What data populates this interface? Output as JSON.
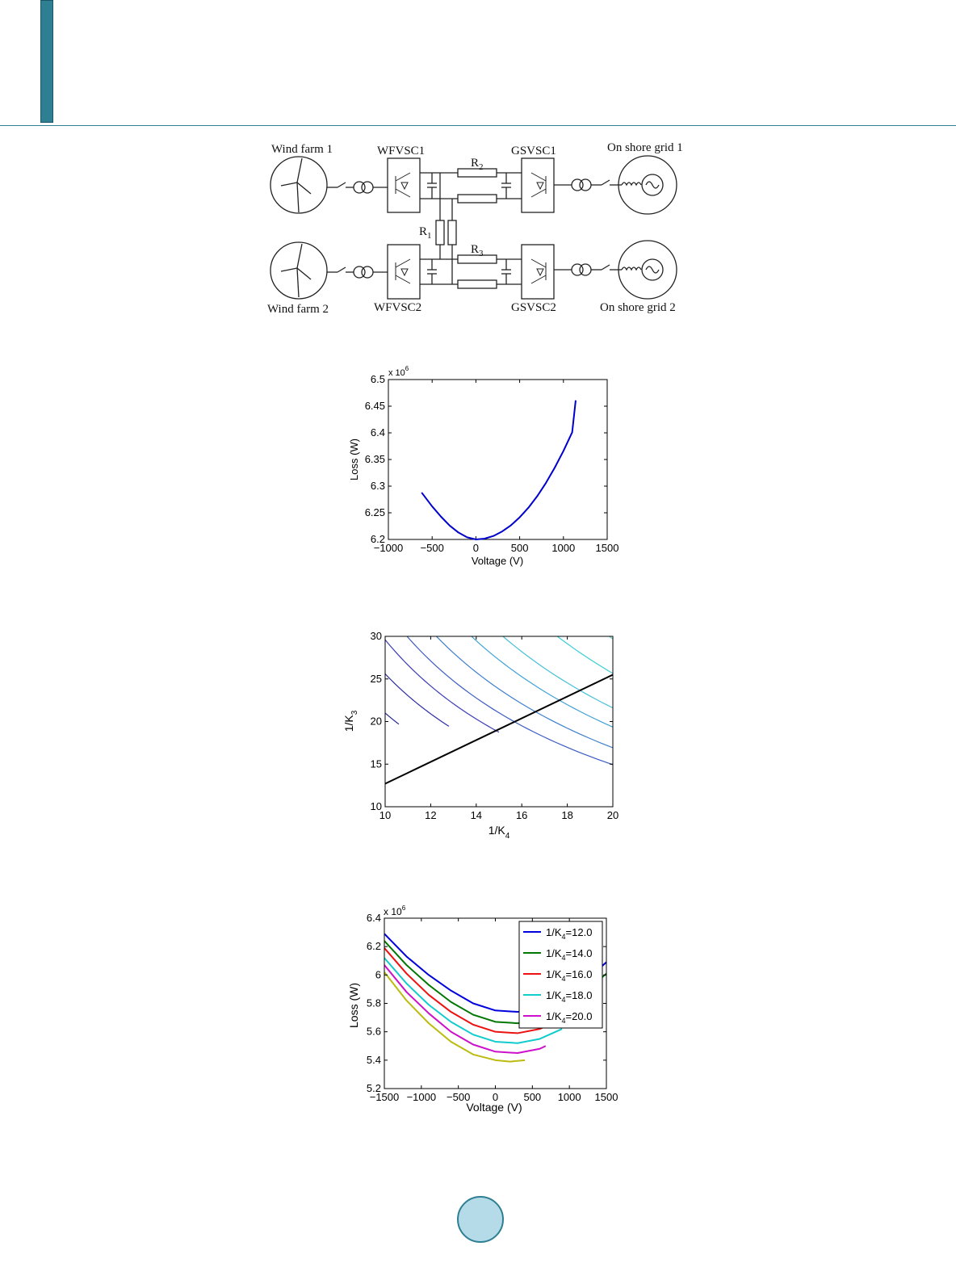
{
  "diagram": {
    "wind_farm_1": "Wind farm 1",
    "wind_farm_2": "Wind farm 2",
    "wfvsc1": "WFVSC1",
    "wfvsc2": "WFVSC2",
    "gsvsc1": "GSVSC1",
    "gsvsc2": "GSVSC2",
    "grid1": "On shore grid 1",
    "grid2": "On shore grid 2",
    "r1": "R",
    "r1_sub": "1",
    "r2": "R",
    "r2_sub": "2",
    "r3": "R",
    "r3_sub": "3"
  },
  "chart_data": [
    {
      "type": "line",
      "xlabel": "Voltage (V)",
      "ylabel": "Loss (W)",
      "exponent_label": "x 10",
      "exponent_power": "6",
      "xlim": [
        -1000,
        1500
      ],
      "ylim": [
        6.2,
        6.5
      ],
      "xticks": [
        "−1000",
        "−500",
        "0",
        "500",
        "1000",
        "1500"
      ],
      "yticks": [
        "6.2",
        "6.25",
        "6.3",
        "6.35",
        "6.4",
        "6.45",
        "6.5"
      ],
      "series": [
        {
          "color": "#0000cc",
          "x": [
            -620,
            -500,
            -400,
            -300,
            -200,
            -100,
            0,
            100,
            200,
            300,
            400,
            500,
            600,
            700,
            800,
            900,
            1000,
            1100,
            1140
          ],
          "y": [
            6.288,
            6.262,
            6.243,
            6.226,
            6.213,
            6.204,
            6.2,
            6.2015,
            6.2065,
            6.215,
            6.2265,
            6.2415,
            6.2595,
            6.281,
            6.306,
            6.3345,
            6.366,
            6.401,
            6.461
          ]
        }
      ]
    },
    {
      "type": "line",
      "xlabel": "1/K",
      "xlabel_sub": "4",
      "ylabel": "1/K",
      "ylabel_sub": "3",
      "xlim": [
        10,
        20
      ],
      "ylim": [
        10,
        30
      ],
      "xticks": [
        "10",
        "12",
        "14",
        "16",
        "18",
        "20"
      ],
      "yticks": [
        "10",
        "15",
        "20",
        "25",
        "30"
      ],
      "contours": [
        {
          "color": "#2a2a9a",
          "c": 105,
          "x0": 10,
          "x1": 10.6
        },
        {
          "color": "#2c2ca6",
          "c": 128,
          "x0": 10,
          "x1": 12.8
        },
        {
          "color": "#3b3bb6",
          "c": 148,
          "x0": 10,
          "x1": 15.0
        },
        {
          "color": "#3a5bc4",
          "c": 166,
          "x0": 10,
          "x1": 20
        },
        {
          "color": "#3d7fcf",
          "c": 188,
          "x0": 10,
          "x1": 20
        },
        {
          "color": "#3fa2d8",
          "c": 215,
          "x0": 10,
          "x1": 20
        },
        {
          "color": "#47c1d9",
          "c": 240,
          "x0": 10,
          "x1": 20
        },
        {
          "color": "#38ced6",
          "c": 285,
          "x0": 10,
          "x1": 20
        },
        {
          "color": "#5fd0d0",
          "c": 330,
          "x0": 11.0,
          "x1": 20
        },
        {
          "color": "#7fd5a8",
          "c": 372,
          "x0": 12.4,
          "x1": 20
        },
        {
          "color": "#a8d66f",
          "c": 415,
          "x0": 13.8,
          "x1": 20
        },
        {
          "color": "#e8d84a",
          "c": 462,
          "x0": 15.4,
          "x1": 20
        },
        {
          "color": "#e8b040",
          "c": 510,
          "x0": 17.0,
          "x1": 20
        },
        {
          "color": "#d88a42",
          "c": 552,
          "x0": 18.4,
          "x1": 20
        },
        {
          "color": "#cc4a3a",
          "c": 590,
          "x0": 19.6,
          "x1": 20
        },
        {
          "color": "#b5302a",
          "c": 598,
          "x0": 19.9,
          "x1": 20
        }
      ],
      "line": {
        "color": "#000000",
        "x": [
          10,
          20
        ],
        "y": [
          12.7,
          25.5
        ]
      }
    },
    {
      "type": "line",
      "xlabel": "Voltage (V)",
      "ylabel": "Loss (W)",
      "exponent_label": "x 10",
      "exponent_power": "6",
      "xlim": [
        -1500,
        1500
      ],
      "ylim": [
        5.2,
        6.4
      ],
      "xticks": [
        "−1500",
        "−1000",
        "−500",
        "0",
        "500",
        "1000",
        "1500"
      ],
      "yticks": [
        "5.2",
        "5.4",
        "5.6",
        "5.8",
        "6",
        "6.2",
        "6.4"
      ],
      "legend_position": "top-right",
      "series": [
        {
          "name": "1/K",
          "name_sub": "4",
          "name_tail": "=12.0",
          "color": "#0000dd",
          "x": [
            -1500,
            -1200,
            -900,
            -600,
            -300,
            0,
            300,
            600,
            900,
            1200,
            1500
          ],
          "y": [
            6.29,
            6.13,
            6.0,
            5.89,
            5.8,
            5.75,
            5.74,
            5.77,
            5.84,
            5.95,
            6.09
          ]
        },
        {
          "name": "1/K",
          "name_sub": "4",
          "name_tail": "=14.0",
          "color": "#007700",
          "x": [
            -1500,
            -1200,
            -900,
            -600,
            -300,
            0,
            300,
            600,
            900,
            1200,
            1500
          ],
          "y": [
            6.24,
            6.07,
            5.93,
            5.81,
            5.72,
            5.67,
            5.66,
            5.69,
            5.76,
            5.87,
            6.01
          ]
        },
        {
          "name": "1/K",
          "name_sub": "4",
          "name_tail": "=16.0",
          "color": "#ee1111",
          "x": [
            -1500,
            -1200,
            -900,
            -600,
            -300,
            0,
            300,
            600,
            900,
            1200
          ],
          "y": [
            6.19,
            6.01,
            5.86,
            5.74,
            5.65,
            5.6,
            5.59,
            5.62,
            5.69,
            5.8
          ]
        },
        {
          "name": "1/K",
          "name_sub": "4",
          "name_tail": "=18.0",
          "color": "#11cccc",
          "x": [
            -1500,
            -1200,
            -900,
            -600,
            -300,
            0,
            300,
            600,
            900
          ],
          "y": [
            6.12,
            5.94,
            5.79,
            5.67,
            5.58,
            5.53,
            5.52,
            5.55,
            5.62
          ]
        },
        {
          "name": "1/K",
          "name_sub": "4",
          "name_tail": "=20.0",
          "color": "#cc11cc",
          "x": [
            -1500,
            -1200,
            -900,
            -600,
            -300,
            0,
            300,
            600,
            680
          ],
          "y": [
            6.07,
            5.88,
            5.73,
            5.6,
            5.51,
            5.46,
            5.45,
            5.48,
            5.5
          ]
        },
        {
          "color": "#bbbb11",
          "x": [
            -1500,
            -1200,
            -900,
            -600,
            -300,
            0,
            200,
            400
          ],
          "y": [
            6.02,
            5.82,
            5.66,
            5.53,
            5.44,
            5.4,
            5.39,
            5.4
          ]
        }
      ]
    }
  ]
}
